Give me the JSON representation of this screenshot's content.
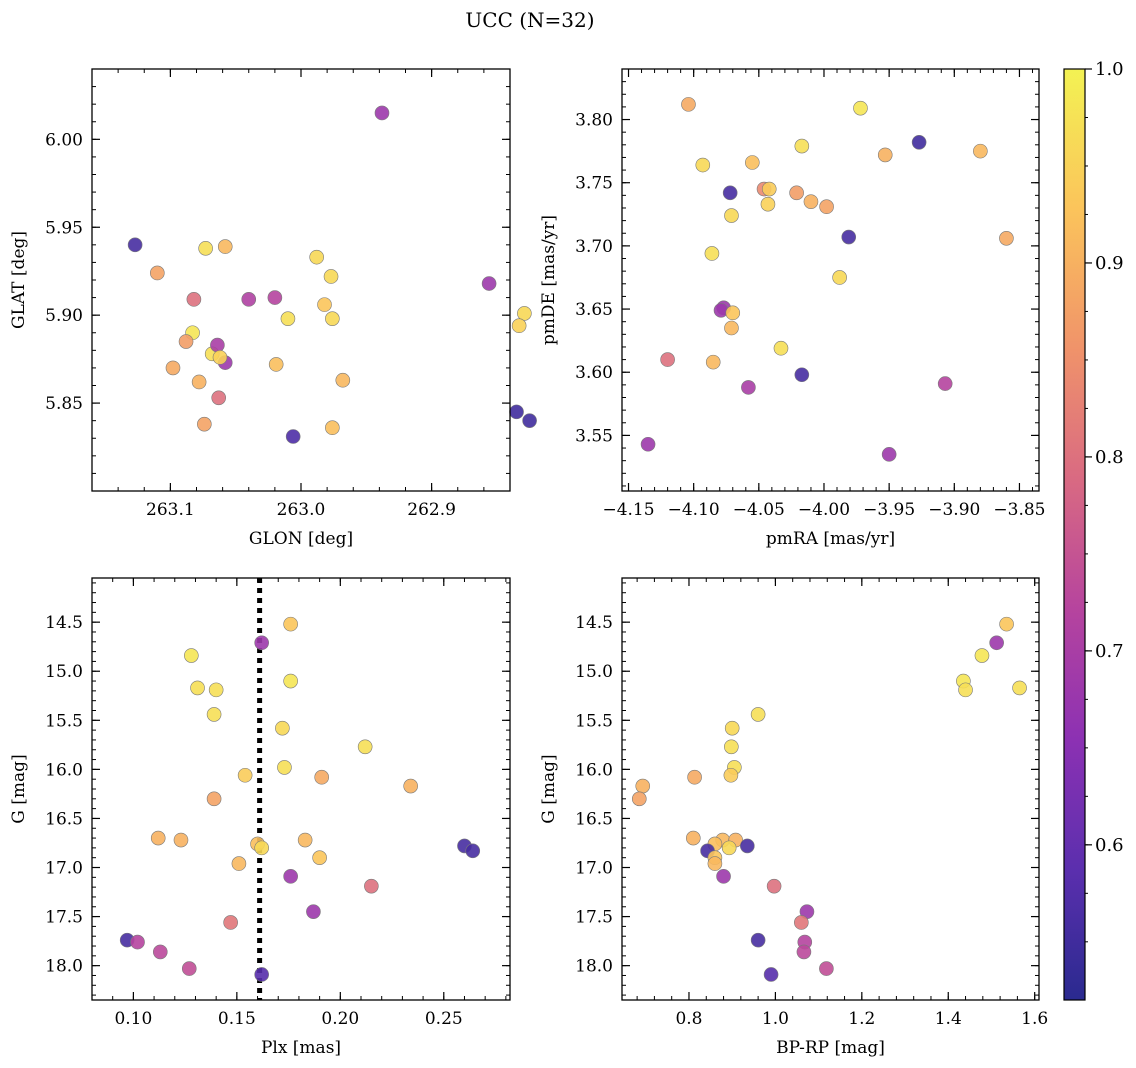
{
  "figure": {
    "title": "UCC (N=32)"
  },
  "colorbar": {
    "range": [
      0.52,
      1.0
    ],
    "ticks": [
      0.6,
      0.7,
      0.8,
      0.9,
      1.0
    ],
    "tick_labels": [
      "0.6",
      "0.7",
      "0.8",
      "0.9",
      "1.0"
    ],
    "colormap": "plasma"
  },
  "chart_data": [
    {
      "type": "scatter",
      "id": "glon-glat",
      "xlabel": "GLON [deg]",
      "ylabel": "GLAT [deg]",
      "xlim": [
        262.84,
        263.16
      ],
      "ylim": [
        5.8,
        6.04
      ],
      "x_inverted": true,
      "y_inverted": false,
      "xticks": [
        262.9,
        263.0,
        263.1
      ],
      "xtick_labels": [
        "262.9",
        "263.0",
        "263.1"
      ],
      "yticks": [
        5.85,
        5.9,
        5.95,
        6.0
      ],
      "ytick_labels": [
        "5.85",
        "5.90",
        "5.95",
        "6.00"
      ],
      "points": [
        [
          262.938,
          6.015,
          0.68
        ],
        [
          262.856,
          5.918,
          0.68
        ],
        [
          262.829,
          5.901,
          0.96
        ],
        [
          262.833,
          5.894,
          0.95
        ],
        [
          262.988,
          5.933,
          0.96
        ],
        [
          262.977,
          5.922,
          0.96
        ],
        [
          262.982,
          5.906,
          0.93
        ],
        [
          262.976,
          5.898,
          0.96
        ],
        [
          263.01,
          5.898,
          0.97
        ],
        [
          263.02,
          5.91,
          0.72
        ],
        [
          263.04,
          5.909,
          0.71
        ],
        [
          263.058,
          5.939,
          0.91
        ],
        [
          263.073,
          5.938,
          0.97
        ],
        [
          263.082,
          5.909,
          0.8
        ],
        [
          263.127,
          5.94,
          0.56
        ],
        [
          263.11,
          5.924,
          0.88
        ],
        [
          263.083,
          5.89,
          0.98
        ],
        [
          263.088,
          5.885,
          0.87
        ],
        [
          263.068,
          5.878,
          0.97
        ],
        [
          263.064,
          5.883,
          0.7
        ],
        [
          263.058,
          5.873,
          0.68
        ],
        [
          263.062,
          5.876,
          0.95
        ],
        [
          263.019,
          5.872,
          0.92
        ],
        [
          262.968,
          5.863,
          0.91
        ],
        [
          263.078,
          5.862,
          0.9
        ],
        [
          263.098,
          5.87,
          0.89
        ],
        [
          263.063,
          5.853,
          0.8
        ],
        [
          263.074,
          5.838,
          0.88
        ],
        [
          262.976,
          5.836,
          0.92
        ],
        [
          263.006,
          5.831,
          0.57
        ],
        [
          262.835,
          5.845,
          0.55
        ],
        [
          262.825,
          5.84,
          0.55
        ]
      ]
    },
    {
      "type": "scatter",
      "id": "pmra-pmde",
      "xlabel": "pmRA [mas/yr]",
      "ylabel": "pmDE [mas/yr]",
      "xlim": [
        -4.155,
        -3.835
      ],
      "ylim": [
        3.506,
        3.84
      ],
      "x_inverted": false,
      "y_inverted": false,
      "xticks": [
        -4.15,
        -4.1,
        -4.05,
        -4.0,
        -3.95,
        -3.9,
        -3.85
      ],
      "xtick_labels": [
        "−4.15",
        "−4.10",
        "−4.05",
        "−4.00",
        "−3.95",
        "−3.90",
        "−3.85"
      ],
      "yticks": [
        3.55,
        3.6,
        3.65,
        3.7,
        3.75,
        3.8
      ],
      "ytick_labels": [
        "3.55",
        "3.60",
        "3.65",
        "3.70",
        "3.75",
        "3.80"
      ],
      "points": [
        [
          -4.104,
          3.812,
          0.89
        ],
        [
          -3.972,
          3.809,
          0.98
        ],
        [
          -3.927,
          3.782,
          0.55
        ],
        [
          -3.88,
          3.775,
          0.91
        ],
        [
          -4.017,
          3.779,
          0.97
        ],
        [
          -3.953,
          3.772,
          0.9
        ],
        [
          -4.093,
          3.764,
          0.96
        ],
        [
          -4.055,
          3.766,
          0.92
        ],
        [
          -4.072,
          3.742,
          0.56
        ],
        [
          -4.046,
          3.745,
          0.84
        ],
        [
          -4.042,
          3.745,
          0.94
        ],
        [
          -4.021,
          3.742,
          0.87
        ],
        [
          -4.01,
          3.735,
          0.9
        ],
        [
          -3.998,
          3.731,
          0.88
        ],
        [
          -4.043,
          3.733,
          0.95
        ],
        [
          -4.071,
          3.724,
          0.96
        ],
        [
          -3.981,
          3.707,
          0.56
        ],
        [
          -3.86,
          3.706,
          0.89
        ],
        [
          -4.086,
          3.694,
          0.97
        ],
        [
          -3.988,
          3.675,
          0.96
        ],
        [
          -4.077,
          3.651,
          0.68
        ],
        [
          -4.079,
          3.649,
          0.68
        ],
        [
          -4.07,
          3.647,
          0.93
        ],
        [
          -4.071,
          3.635,
          0.91
        ],
        [
          -4.033,
          3.619,
          0.97
        ],
        [
          -4.12,
          3.61,
          0.8
        ],
        [
          -4.085,
          3.608,
          0.91
        ],
        [
          -4.017,
          3.598,
          0.56
        ],
        [
          -4.058,
          3.588,
          0.7
        ],
        [
          -3.907,
          3.591,
          0.72
        ],
        [
          -4.135,
          3.543,
          0.68
        ],
        [
          -3.95,
          3.535,
          0.68
        ]
      ]
    },
    {
      "type": "scatter",
      "id": "plx-g",
      "xlabel": "Plx [mas]",
      "ylabel": "G [mag]",
      "xlim": [
        0.08,
        0.282
      ],
      "ylim": [
        14.05,
        18.35
      ],
      "x_inverted": false,
      "y_inverted": true,
      "vline": 0.161,
      "xticks": [
        0.1,
        0.15,
        0.2,
        0.25
      ],
      "xtick_labels": [
        "0.10",
        "0.15",
        "0.20",
        "0.25"
      ],
      "yticks": [
        14.5,
        15.0,
        15.5,
        16.0,
        16.5,
        17.0,
        17.5,
        18.0
      ],
      "ytick_labels": [
        "14.5",
        "15.0",
        "15.5",
        "16.0",
        "16.5",
        "17.0",
        "17.5",
        "18.0"
      ],
      "points": [
        [
          0.176,
          14.52,
          0.93
        ],
        [
          0.162,
          14.71,
          0.68
        ],
        [
          0.128,
          14.84,
          0.98
        ],
        [
          0.131,
          15.17,
          0.97
        ],
        [
          0.14,
          15.19,
          0.97
        ],
        [
          0.176,
          15.1,
          0.98
        ],
        [
          0.139,
          15.44,
          0.97
        ],
        [
          0.172,
          15.58,
          0.96
        ],
        [
          0.212,
          15.77,
          0.97
        ],
        [
          0.173,
          15.98,
          0.97
        ],
        [
          0.154,
          16.06,
          0.94
        ],
        [
          0.191,
          16.08,
          0.89
        ],
        [
          0.234,
          16.17,
          0.9
        ],
        [
          0.139,
          16.3,
          0.88
        ],
        [
          0.112,
          16.7,
          0.9
        ],
        [
          0.123,
          16.72,
          0.9
        ],
        [
          0.183,
          16.72,
          0.91
        ],
        [
          0.16,
          16.76,
          0.92
        ],
        [
          0.162,
          16.8,
          0.96
        ],
        [
          0.26,
          16.78,
          0.56
        ],
        [
          0.264,
          16.83,
          0.56
        ],
        [
          0.19,
          16.9,
          0.93
        ],
        [
          0.151,
          16.96,
          0.91
        ],
        [
          0.176,
          17.09,
          0.68
        ],
        [
          0.215,
          17.19,
          0.8
        ],
        [
          0.187,
          17.45,
          0.68
        ],
        [
          0.147,
          17.56,
          0.81
        ],
        [
          0.097,
          17.74,
          0.56
        ],
        [
          0.102,
          17.76,
          0.72
        ],
        [
          0.113,
          17.86,
          0.73
        ],
        [
          0.127,
          18.03,
          0.74
        ],
        [
          0.162,
          18.09,
          0.58
        ]
      ]
    },
    {
      "type": "scatter",
      "id": "bprp-g",
      "xlabel": "BP-RP [mag]",
      "ylabel": "G [mag]",
      "xlim": [
        0.645,
        1.61
      ],
      "ylim": [
        14.05,
        18.35
      ],
      "x_inverted": false,
      "y_inverted": true,
      "xticks": [
        0.8,
        1.0,
        1.2,
        1.4,
        1.6
      ],
      "xtick_labels": [
        "0.8",
        "1.0",
        "1.2",
        "1.4",
        "1.6"
      ],
      "yticks": [
        14.5,
        15.0,
        15.5,
        16.0,
        16.5,
        17.0,
        17.5,
        18.0
      ],
      "ytick_labels": [
        "14.5",
        "15.0",
        "15.5",
        "16.0",
        "16.5",
        "17.0",
        "17.5",
        "18.0"
      ],
      "points": [
        [
          1.535,
          14.52,
          0.93
        ],
        [
          1.512,
          14.71,
          0.68
        ],
        [
          1.478,
          14.84,
          0.98
        ],
        [
          1.435,
          15.1,
          0.98
        ],
        [
          1.44,
          15.19,
          0.97
        ],
        [
          1.565,
          15.17,
          0.97
        ],
        [
          0.96,
          15.44,
          0.97
        ],
        [
          0.9,
          15.58,
          0.96
        ],
        [
          0.898,
          15.77,
          0.97
        ],
        [
          0.905,
          15.98,
          0.97
        ],
        [
          0.897,
          16.06,
          0.94
        ],
        [
          0.813,
          16.08,
          0.89
        ],
        [
          0.693,
          16.17,
          0.9
        ],
        [
          0.685,
          16.3,
          0.88
        ],
        [
          0.81,
          16.7,
          0.9
        ],
        [
          0.878,
          16.72,
          0.91
        ],
        [
          0.908,
          16.72,
          0.9
        ],
        [
          0.86,
          16.76,
          0.92
        ],
        [
          0.893,
          16.8,
          0.96
        ],
        [
          0.935,
          16.78,
          0.56
        ],
        [
          0.843,
          16.83,
          0.56
        ],
        [
          0.86,
          16.9,
          0.93
        ],
        [
          0.86,
          16.96,
          0.91
        ],
        [
          0.88,
          17.09,
          0.68
        ],
        [
          0.997,
          17.19,
          0.8
        ],
        [
          1.073,
          17.45,
          0.68
        ],
        [
          1.06,
          17.56,
          0.81
        ],
        [
          0.96,
          17.74,
          0.56
        ],
        [
          1.068,
          17.76,
          0.72
        ],
        [
          1.066,
          17.86,
          0.73
        ],
        [
          1.118,
          18.03,
          0.74
        ],
        [
          0.99,
          18.09,
          0.58
        ]
      ]
    }
  ]
}
